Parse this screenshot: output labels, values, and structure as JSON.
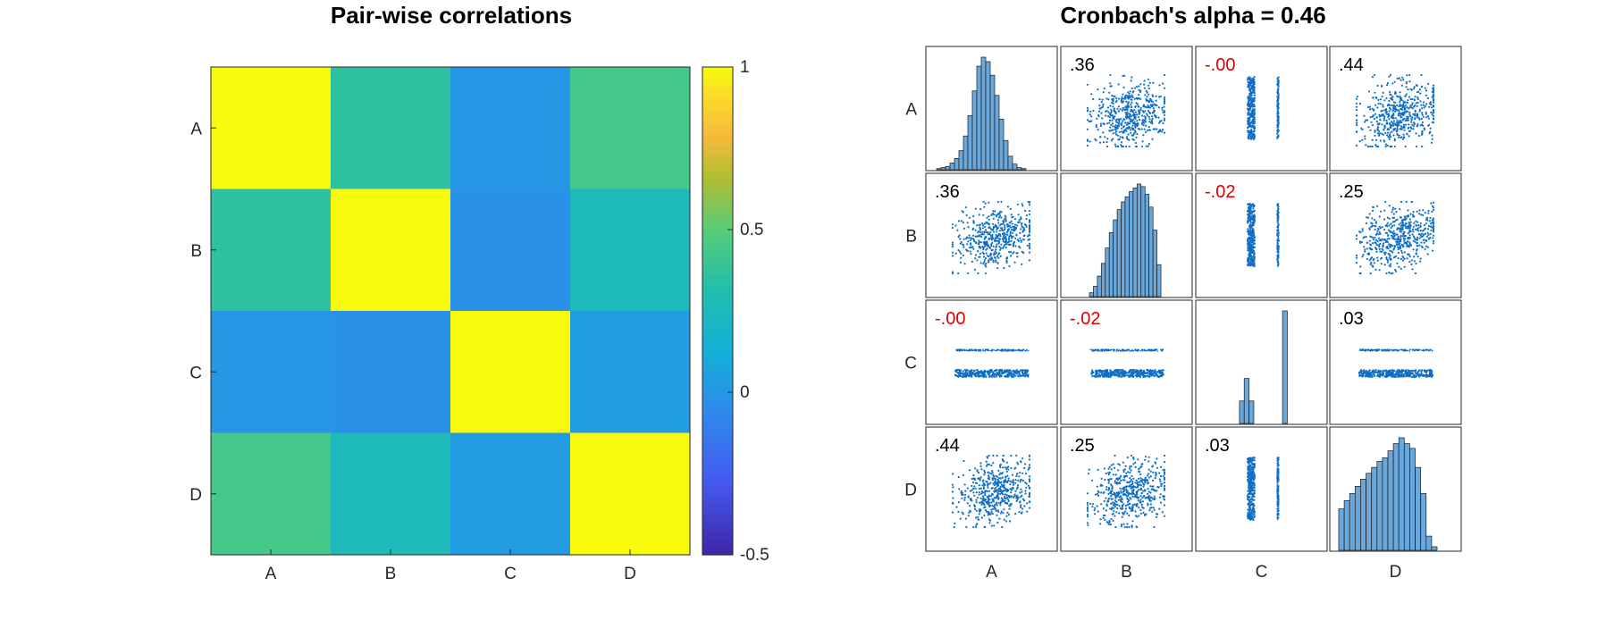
{
  "chart_data": [
    {
      "type": "heatmap",
      "title": "Pair-wise correlations",
      "x_categories": [
        "A",
        "B",
        "C",
        "D"
      ],
      "y_categories": [
        "A",
        "B",
        "C",
        "D"
      ],
      "values": [
        [
          1.0,
          0.36,
          0.0,
          0.44
        ],
        [
          0.36,
          1.0,
          -0.02,
          0.25
        ],
        [
          0.0,
          -0.02,
          1.0,
          0.03
        ],
        [
          0.44,
          0.25,
          0.03,
          1.0
        ]
      ],
      "colorbar": {
        "range": [
          -0.5,
          1
        ],
        "ticks": [
          {
            "value": 1,
            "label": "1"
          },
          {
            "value": 0.5,
            "label": "0.5"
          },
          {
            "value": 0,
            "label": "0"
          },
          {
            "value": -0.5,
            "label": "-0.5"
          }
        ],
        "colormap": "parula"
      }
    },
    {
      "type": "scatter",
      "title": "Cronbach's alpha = 0.46",
      "variables": [
        "A",
        "B",
        "C",
        "D"
      ],
      "diagonal": "histogram",
      "histogram_bins": {
        "A": [
          1,
          2,
          3,
          6,
          10,
          17,
          30,
          48,
          70,
          92,
          100,
          96,
          84,
          66,
          45,
          26,
          12,
          5,
          2,
          1
        ],
        "B": [
          3,
          8,
          16,
          26,
          38,
          50,
          60,
          68,
          74,
          78,
          82,
          85,
          88,
          86,
          80,
          70,
          52,
          25
        ],
        "C": [
          0,
          0,
          0,
          0,
          0,
          0,
          0,
          0,
          20,
          40,
          20,
          0,
          0,
          0,
          0,
          0,
          0,
          100,
          0,
          0,
          0,
          0,
          0,
          0,
          0
        ],
        "D": [
          35,
          42,
          48,
          54,
          60,
          65,
          70,
          75,
          78,
          84,
          90,
          95,
          90,
          86,
          70,
          48,
          12,
          3
        ]
      },
      "correlation_labels": [
        [
          "",
          ".36",
          "-.00",
          ".44"
        ],
        [
          ".36",
          "",
          "-.02",
          ".25"
        ],
        [
          "-.00",
          "-.02",
          "",
          ".03"
        ],
        [
          ".44",
          ".25",
          ".03",
          ""
        ]
      ],
      "negative_label_color": "#e00000",
      "positive_label_color": "#000000",
      "point_color": "#0f6fc6",
      "bar_color": "#6aa8dc"
    }
  ]
}
